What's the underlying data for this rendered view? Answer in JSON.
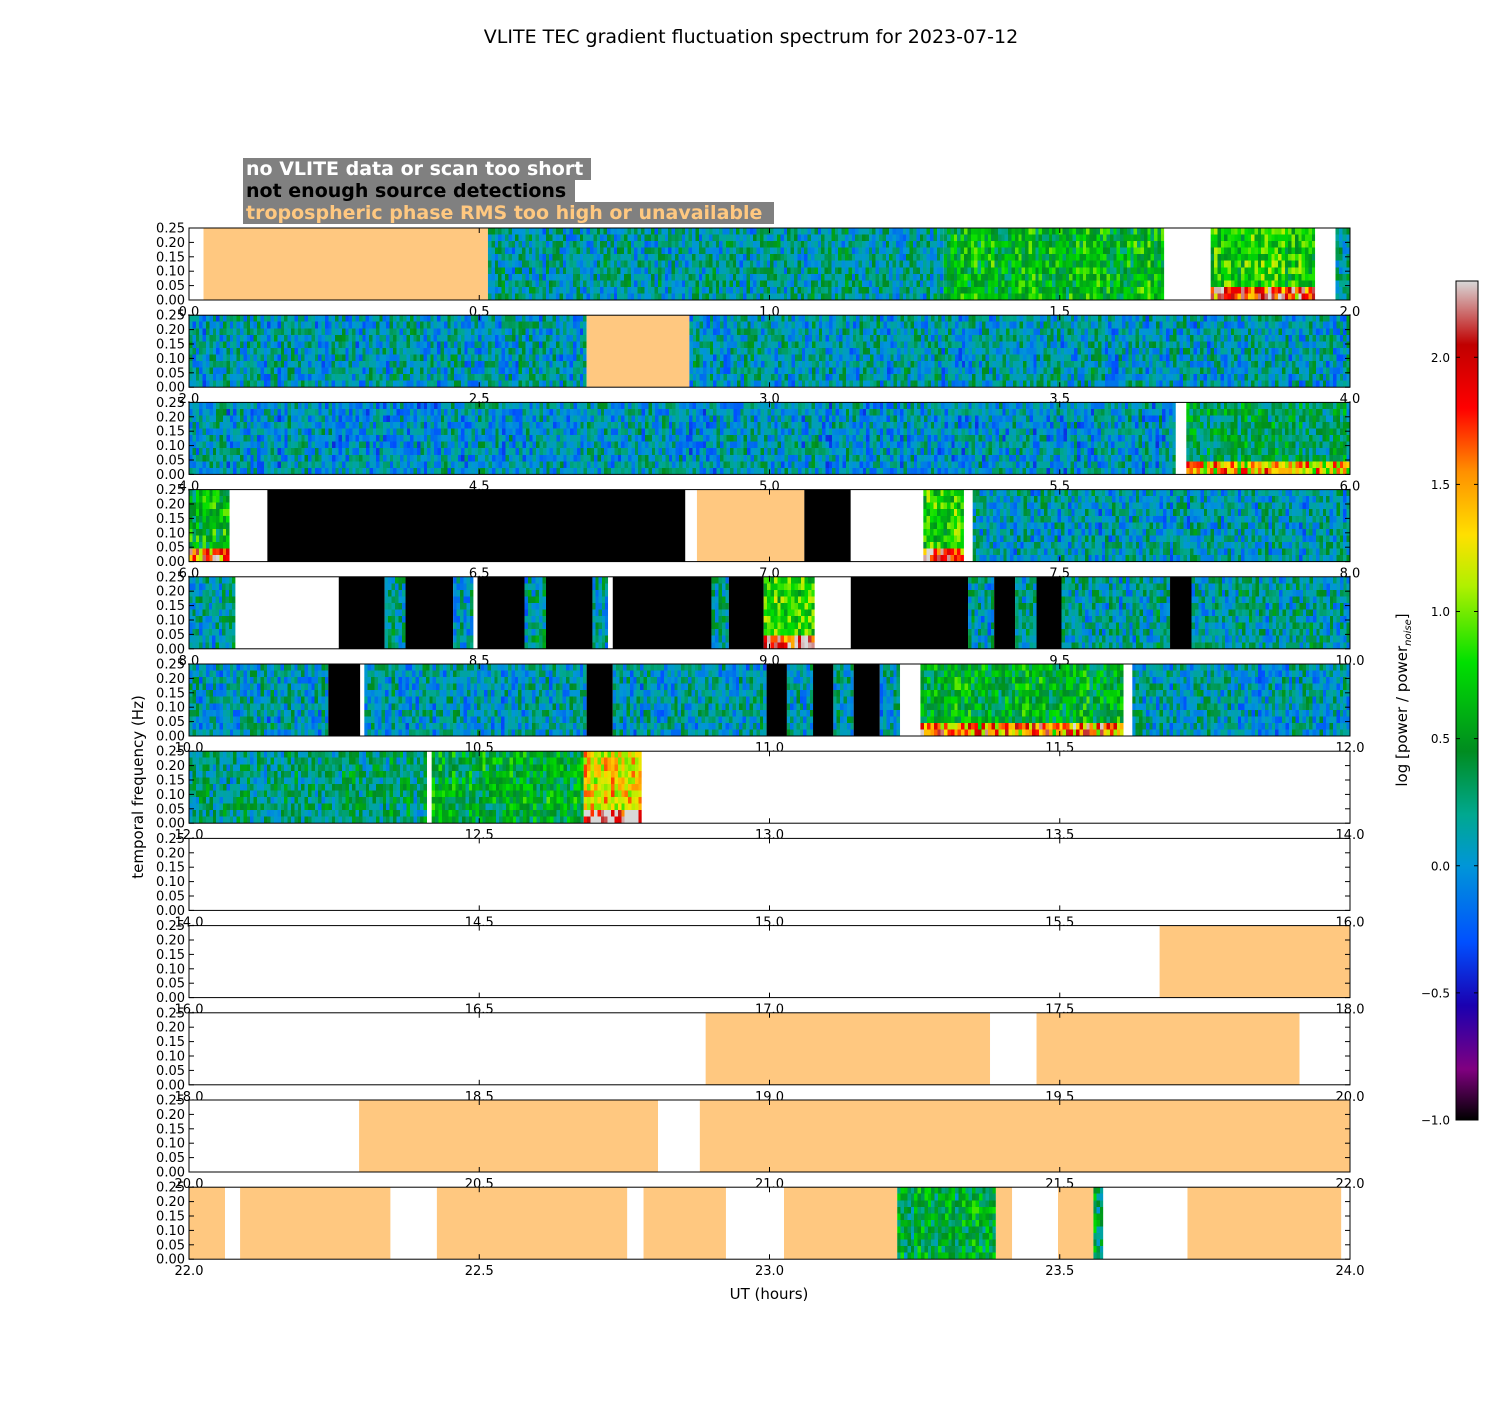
{
  "chart_data": {
    "type": "heatmap",
    "title": "VLITE TEC gradient fluctuation spectrum for 2023-07-12",
    "xlabel": "UT (hours)",
    "ylabel": "temporal frequency (Hz)",
    "ylim": [
      0,
      0.25
    ],
    "y_ticks": [
      "0.00",
      "0.05",
      "0.10",
      "0.15",
      "0.20",
      "0.25"
    ],
    "grid": false,
    "legend_position": "top-left",
    "legend": [
      {
        "text": "no VLITE data or scan too short",
        "color": "#ffffff"
      },
      {
        "text": "not enough source detections",
        "color": "#000000"
      },
      {
        "text": "tropospheric phase RMS too high or unavailable",
        "color": "#ffc880"
      }
    ],
    "colorbar": {
      "label": "log [power / power",
      "label_sub": "noise",
      "label_close": "]",
      "range": [
        -1.0,
        2.3
      ],
      "ticks": [
        "2.0",
        "1.5",
        "1.0",
        "0.5",
        "0.0",
        "−0.5",
        "−1.0"
      ],
      "tick_values": [
        2.0,
        1.5,
        1.0,
        0.5,
        0.0,
        -0.5,
        -1.0
      ],
      "stops": [
        {
          "v": -1.0,
          "c": "#000000"
        },
        {
          "v": -0.8,
          "c": "#800080"
        },
        {
          "v": -0.55,
          "c": "#1a00b0"
        },
        {
          "v": -0.3,
          "c": "#0050ff"
        },
        {
          "v": 0.0,
          "c": "#0096d8"
        },
        {
          "v": 0.2,
          "c": "#00a890"
        },
        {
          "v": 0.45,
          "c": "#008c20"
        },
        {
          "v": 0.8,
          "c": "#00e000"
        },
        {
          "v": 1.1,
          "c": "#b0f000"
        },
        {
          "v": 1.3,
          "c": "#ffe000"
        },
        {
          "v": 1.55,
          "c": "#ff9000"
        },
        {
          "v": 1.8,
          "c": "#ff0000"
        },
        {
          "v": 2.05,
          "c": "#c00000"
        },
        {
          "v": 2.3,
          "c": "#d8d8d8"
        }
      ]
    },
    "categories": {
      "white": "#ffffff",
      "black": "#000000",
      "tropo": "#ffc880"
    },
    "panels": [
      {
        "xlim": [
          0,
          2
        ],
        "x_ticks": [
          "0.0",
          "0.5",
          "1.0",
          "1.5",
          "2.0"
        ],
        "segments": [
          {
            "t0": 0.0,
            "t1": 0.025,
            "k": "white"
          },
          {
            "t0": 0.025,
            "t1": 0.515,
            "k": "tropo"
          },
          {
            "t0": 0.515,
            "t1": 1.3,
            "k": "data",
            "level": 0.15
          },
          {
            "t0": 1.3,
            "t1": 1.68,
            "k": "data",
            "level": 0.6
          },
          {
            "t0": 1.68,
            "t1": 1.76,
            "k": "white"
          },
          {
            "t0": 1.76,
            "t1": 1.94,
            "k": "data",
            "level": 0.75,
            "hot": true
          },
          {
            "t0": 1.94,
            "t1": 1.975,
            "k": "white"
          },
          {
            "t0": 1.975,
            "t1": 2.0,
            "k": "data",
            "level": 0.15
          }
        ]
      },
      {
        "xlim": [
          2,
          4
        ],
        "x_ticks": [
          "2.0",
          "2.5",
          "3.0",
          "3.5",
          "4.0"
        ],
        "segments": [
          {
            "t0": 2.0,
            "t1": 2.685,
            "k": "data",
            "level": 0.1
          },
          {
            "t0": 2.685,
            "t1": 2.862,
            "k": "tropo"
          },
          {
            "t0": 2.862,
            "t1": 4.0,
            "k": "data",
            "level": 0.1
          }
        ]
      },
      {
        "xlim": [
          4,
          6
        ],
        "x_ticks": [
          "4.0",
          "4.5",
          "5.0",
          "5.5",
          "6.0"
        ],
        "segments": [
          {
            "t0": 4.0,
            "t1": 5.7,
            "k": "data",
            "level": 0.05
          },
          {
            "t0": 5.7,
            "t1": 5.718,
            "k": "white"
          },
          {
            "t0": 5.718,
            "t1": 6.0,
            "k": "data",
            "level": 0.35,
            "hot": true
          }
        ]
      },
      {
        "xlim": [
          6,
          8
        ],
        "x_ticks": [
          "6.0",
          "6.5",
          "7.0",
          "7.5",
          "8.0"
        ],
        "segments": [
          {
            "t0": 6.0,
            "t1": 6.07,
            "k": "data",
            "level": 0.6,
            "hot": true
          },
          {
            "t0": 6.07,
            "t1": 6.135,
            "k": "white"
          },
          {
            "t0": 6.135,
            "t1": 6.855,
            "k": "black"
          },
          {
            "t0": 6.855,
            "t1": 6.875,
            "k": "white"
          },
          {
            "t0": 6.875,
            "t1": 7.06,
            "k": "tropo"
          },
          {
            "t0": 7.06,
            "t1": 7.14,
            "k": "black"
          },
          {
            "t0": 7.14,
            "t1": 7.265,
            "k": "white"
          },
          {
            "t0": 7.265,
            "t1": 7.335,
            "k": "data",
            "level": 0.8,
            "hot": true
          },
          {
            "t0": 7.335,
            "t1": 7.35,
            "k": "white"
          },
          {
            "t0": 7.35,
            "t1": 8.0,
            "k": "data",
            "level": 0.1
          }
        ]
      },
      {
        "xlim": [
          8,
          10
        ],
        "x_ticks": [
          "8.0",
          "8.5",
          "9.0",
          "9.5",
          "10.0"
        ],
        "segments": [
          {
            "t0": 8.0,
            "t1": 8.08,
            "k": "data",
            "level": 0.15
          },
          {
            "t0": 8.08,
            "t1": 8.258,
            "k": "white"
          },
          {
            "t0": 8.258,
            "t1": 8.337,
            "k": "black"
          },
          {
            "t0": 8.337,
            "t1": 8.373,
            "k": "data",
            "level": 0.15
          },
          {
            "t0": 8.373,
            "t1": 8.455,
            "k": "black"
          },
          {
            "t0": 8.455,
            "t1": 8.49,
            "k": "data",
            "level": 0.15
          },
          {
            "t0": 8.49,
            "t1": 8.497,
            "k": "white"
          },
          {
            "t0": 8.497,
            "t1": 8.578,
            "k": "black"
          },
          {
            "t0": 8.578,
            "t1": 8.615,
            "k": "data",
            "level": 0.15
          },
          {
            "t0": 8.615,
            "t1": 8.695,
            "k": "black"
          },
          {
            "t0": 8.695,
            "t1": 8.722,
            "k": "data",
            "level": 0.15
          },
          {
            "t0": 8.722,
            "t1": 8.73,
            "k": "white"
          },
          {
            "t0": 8.73,
            "t1": 8.9,
            "k": "black"
          },
          {
            "t0": 8.9,
            "t1": 8.93,
            "k": "data",
            "level": 0.15
          },
          {
            "t0": 8.93,
            "t1": 8.99,
            "k": "black"
          },
          {
            "t0": 8.99,
            "t1": 9.078,
            "k": "data",
            "level": 0.85,
            "hot": true
          },
          {
            "t0": 9.078,
            "t1": 9.14,
            "k": "white"
          },
          {
            "t0": 9.14,
            "t1": 9.342,
            "k": "black"
          },
          {
            "t0": 9.342,
            "t1": 9.387,
            "k": "data",
            "level": 0.15
          },
          {
            "t0": 9.387,
            "t1": 9.423,
            "k": "black"
          },
          {
            "t0": 9.423,
            "t1": 9.46,
            "k": "data",
            "level": 0.15
          },
          {
            "t0": 9.46,
            "t1": 9.503,
            "k": "black"
          },
          {
            "t0": 9.503,
            "t1": 9.69,
            "k": "data",
            "level": 0.15
          },
          {
            "t0": 9.69,
            "t1": 9.727,
            "k": "black"
          },
          {
            "t0": 9.727,
            "t1": 10.0,
            "k": "data",
            "level": 0.15
          }
        ]
      },
      {
        "xlim": [
          10,
          12
        ],
        "x_ticks": [
          "10.0",
          "10.5",
          "11.0",
          "11.5",
          "12.0"
        ],
        "segments": [
          {
            "t0": 10.0,
            "t1": 10.24,
            "k": "data",
            "level": 0.1
          },
          {
            "t0": 10.24,
            "t1": 10.295,
            "k": "black"
          },
          {
            "t0": 10.295,
            "t1": 10.302,
            "k": "white"
          },
          {
            "t0": 10.302,
            "t1": 10.685,
            "k": "data",
            "level": 0.1
          },
          {
            "t0": 10.685,
            "t1": 10.73,
            "k": "black"
          },
          {
            "t0": 10.73,
            "t1": 10.995,
            "k": "data",
            "level": 0.1
          },
          {
            "t0": 10.995,
            "t1": 11.03,
            "k": "black"
          },
          {
            "t0": 11.03,
            "t1": 11.075,
            "k": "data",
            "level": 0.1
          },
          {
            "t0": 11.075,
            "t1": 11.11,
            "k": "black"
          },
          {
            "t0": 11.11,
            "t1": 11.145,
            "k": "data",
            "level": 0.1
          },
          {
            "t0": 11.145,
            "t1": 11.19,
            "k": "black"
          },
          {
            "t0": 11.19,
            "t1": 11.225,
            "k": "data",
            "level": 0.1
          },
          {
            "t0": 11.225,
            "t1": 11.26,
            "k": "white"
          },
          {
            "t0": 11.26,
            "t1": 11.61,
            "k": "data",
            "level": 0.55,
            "hot": true
          },
          {
            "t0": 11.61,
            "t1": 11.625,
            "k": "white"
          },
          {
            "t0": 11.625,
            "t1": 12.0,
            "k": "data",
            "level": 0.1
          }
        ]
      },
      {
        "xlim": [
          12,
          14
        ],
        "x_ticks": [
          "12.0",
          "12.5",
          "13.0",
          "13.5",
          "14.0"
        ],
        "segments": [
          {
            "t0": 12.0,
            "t1": 12.41,
            "k": "data",
            "level": 0.25
          },
          {
            "t0": 12.41,
            "t1": 12.418,
            "k": "white"
          },
          {
            "t0": 12.418,
            "t1": 12.68,
            "k": "data",
            "level": 0.5
          },
          {
            "t0": 12.68,
            "t1": 12.78,
            "k": "data",
            "level": 1.3,
            "hot": true
          },
          {
            "t0": 12.78,
            "t1": 14.0,
            "k": "white"
          }
        ]
      },
      {
        "xlim": [
          14,
          16
        ],
        "x_ticks": [
          "14.0",
          "14.5",
          "15.0",
          "15.5",
          "16.0"
        ],
        "segments": [
          {
            "t0": 14.0,
            "t1": 16.0,
            "k": "white"
          }
        ]
      },
      {
        "xlim": [
          16,
          18
        ],
        "x_ticks": [
          "16.0",
          "16.5",
          "17.0",
          "17.5",
          "18.0"
        ],
        "segments": [
          {
            "t0": 16.0,
            "t1": 17.672,
            "k": "white"
          },
          {
            "t0": 17.672,
            "t1": 18.0,
            "k": "tropo"
          }
        ]
      },
      {
        "xlim": [
          18,
          20
        ],
        "x_ticks": [
          "18.0",
          "18.5",
          "19.0",
          "19.5",
          "20.0"
        ],
        "segments": [
          {
            "t0": 18.0,
            "t1": 18.89,
            "k": "white"
          },
          {
            "t0": 18.89,
            "t1": 19.38,
            "k": "tropo"
          },
          {
            "t0": 19.38,
            "t1": 19.46,
            "k": "white"
          },
          {
            "t0": 19.46,
            "t1": 19.913,
            "k": "tropo"
          },
          {
            "t0": 19.913,
            "t1": 20.0,
            "k": "white"
          }
        ]
      },
      {
        "xlim": [
          20,
          22
        ],
        "x_ticks": [
          "20.0",
          "20.5",
          "21.0",
          "21.5",
          "22.0"
        ],
        "segments": [
          {
            "t0": 20.0,
            "t1": 20.293,
            "k": "white"
          },
          {
            "t0": 20.293,
            "t1": 20.808,
            "k": "tropo"
          },
          {
            "t0": 20.808,
            "t1": 20.88,
            "k": "white"
          },
          {
            "t0": 20.88,
            "t1": 22.0,
            "k": "tropo"
          }
        ]
      },
      {
        "xlim": [
          22,
          24
        ],
        "x_ticks": [
          "22.0",
          "22.5",
          "23.0",
          "23.5",
          "24.0"
        ],
        "segments": [
          {
            "t0": 22.0,
            "t1": 22.062,
            "k": "tropo"
          },
          {
            "t0": 22.062,
            "t1": 22.088,
            "k": "white"
          },
          {
            "t0": 22.088,
            "t1": 22.347,
            "k": "tropo"
          },
          {
            "t0": 22.347,
            "t1": 22.427,
            "k": "white"
          },
          {
            "t0": 22.427,
            "t1": 22.755,
            "k": "tropo"
          },
          {
            "t0": 22.755,
            "t1": 22.783,
            "k": "white"
          },
          {
            "t0": 22.783,
            "t1": 22.925,
            "k": "tropo"
          },
          {
            "t0": 22.925,
            "t1": 23.025,
            "k": "white"
          },
          {
            "t0": 23.025,
            "t1": 23.22,
            "k": "tropo"
          },
          {
            "t0": 23.22,
            "t1": 23.39,
            "k": "data",
            "level": 0.45
          },
          {
            "t0": 23.39,
            "t1": 23.418,
            "k": "tropo"
          },
          {
            "t0": 23.418,
            "t1": 23.497,
            "k": "white"
          },
          {
            "t0": 23.497,
            "t1": 23.558,
            "k": "tropo"
          },
          {
            "t0": 23.558,
            "t1": 23.575,
            "k": "data",
            "level": 0.4
          },
          {
            "t0": 23.575,
            "t1": 23.72,
            "k": "white"
          },
          {
            "t0": 23.72,
            "t1": 23.985,
            "k": "tropo"
          },
          {
            "t0": 23.985,
            "t1": 24.0,
            "k": "white"
          }
        ]
      }
    ]
  }
}
